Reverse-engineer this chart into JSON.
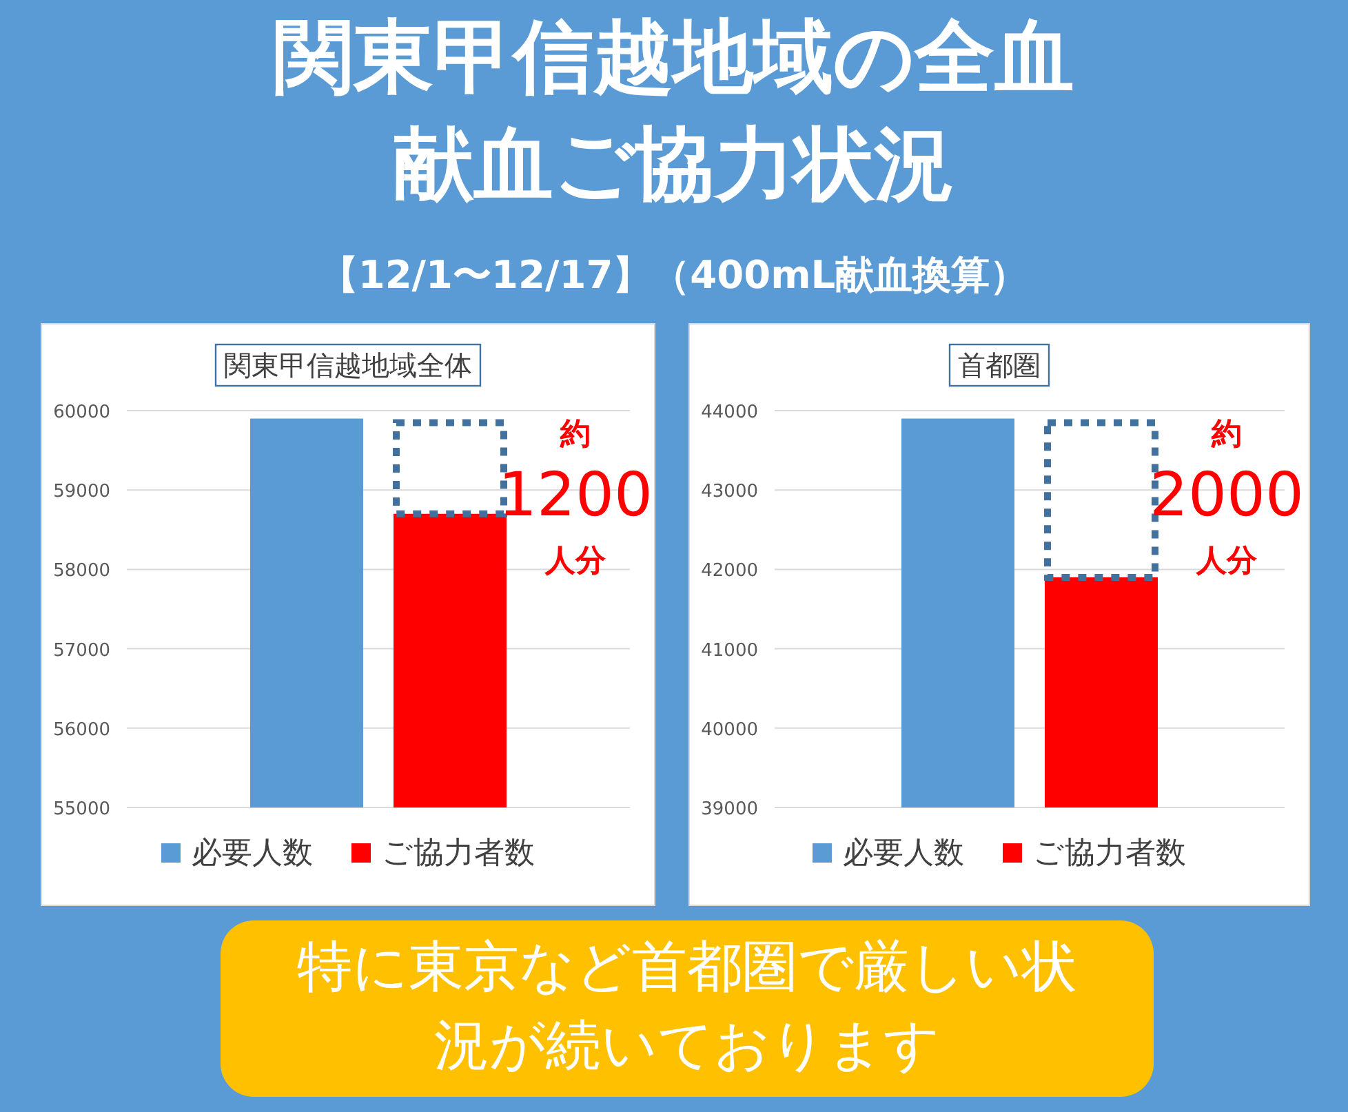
{
  "chart_data": [
    {
      "type": "other",
      "title": "関東甲信越地域の全血献血ご協力状況",
      "subtitle": "【12/1〜12/17】（400mL献血換算）",
      "annotations": [
        "特に東京など首都圏で厳しい状況が続いております"
      ]
    },
    {
      "type": "bar",
      "title": "関東甲信越地域全体",
      "categories": [
        null
      ],
      "series": [
        {
          "name": "必要人数",
          "color": "#5b9bd5",
          "values": [
            59900
          ]
        },
        {
          "name": "ご協力者数",
          "color": "#ff0000",
          "values": [
            58700
          ]
        }
      ],
      "ylim": [
        55000,
        60000
      ],
      "yticks": [
        55000,
        56000,
        57000,
        58000,
        59000,
        60000
      ],
      "grid": "y",
      "legend": "bottom",
      "annotations": [
        "約\n1200\n人分"
      ]
    },
    {
      "type": "bar",
      "title": "首都圏",
      "categories": [
        null
      ],
      "series": [
        {
          "name": "必要人数",
          "color": "#5b9bd5",
          "values": [
            43900
          ]
        },
        {
          "name": "ご協力者数",
          "color": "#ff0000",
          "values": [
            41900
          ]
        }
      ],
      "ylim": [
        39000,
        44000
      ],
      "yticks": [
        39000,
        40000,
        41000,
        42000,
        43000,
        44000
      ],
      "grid": "y",
      "legend": "bottom",
      "annotations": [
        "約\n2000\n人分"
      ]
    }
  ]
}
